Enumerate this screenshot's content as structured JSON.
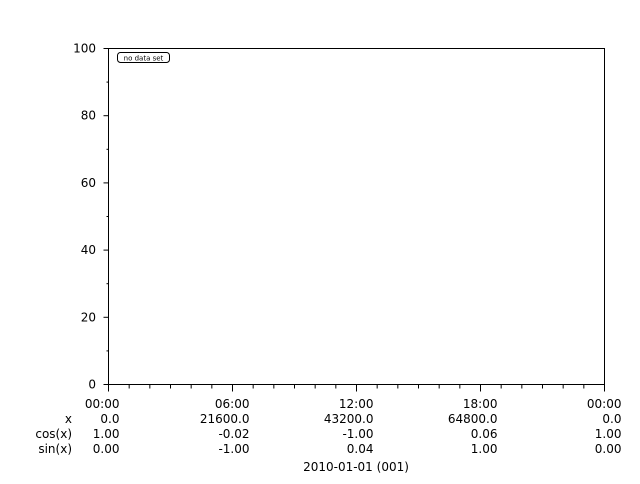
{
  "chart_data": {
    "type": "line",
    "title": "",
    "xlabel": "2010-01-01 (001)",
    "ylabel": "",
    "ylim": [
      0,
      100
    ],
    "yticks": [
      0,
      20,
      40,
      60,
      80,
      100
    ],
    "grid": false,
    "legend": {
      "text": "no data set",
      "placement": "top-left"
    },
    "series": [],
    "xticks": [
      "00:00",
      "06:00",
      "12:00",
      "18:00",
      "00:00"
    ],
    "aux_rows": [
      {
        "label": "x",
        "values": [
          "0.0",
          "21600.0",
          "43200.0",
          "64800.0",
          "0.0"
        ]
      },
      {
        "label": "cos(x)",
        "values": [
          "1.00",
          "-0.02",
          "-1.00",
          "0.06",
          "1.00"
        ]
      },
      {
        "label": "sin(x)",
        "values": [
          "0.00",
          "-1.00",
          "0.04",
          "1.00",
          "0.00"
        ]
      }
    ]
  }
}
